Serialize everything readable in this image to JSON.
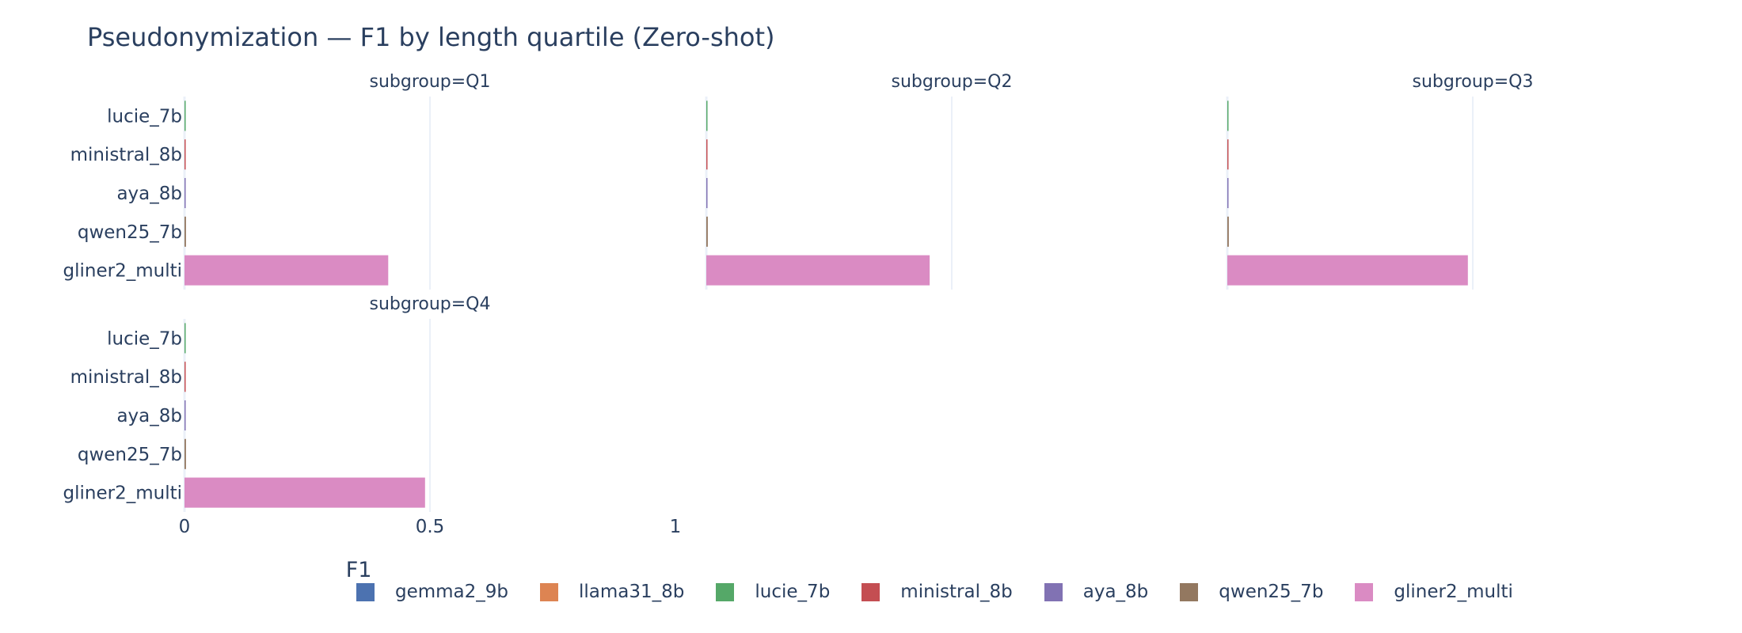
{
  "chart_data": {
    "type": "bar",
    "orientation": "horizontal",
    "title": "Pseudonymization — F1 by length quartile (Zero-shot)",
    "xlabel": "F1",
    "ylabel": "",
    "xlim": [
      0,
      1.0
    ],
    "x_ticks": [
      "0",
      "0.5",
      "1"
    ],
    "grid": true,
    "legend_placement": "bottom",
    "categories": [
      "lucie_7b",
      "ministral_8b",
      "aya_8b",
      "qwen25_7b",
      "gliner2_multi"
    ],
    "series": [
      {
        "name": "gemma2_9b",
        "color": "#4c72b0"
      },
      {
        "name": "llama31_8b",
        "color": "#dd8452"
      },
      {
        "name": "lucie_7b",
        "color": "#55a868"
      },
      {
        "name": "ministral_8b",
        "color": "#c44e52"
      },
      {
        "name": "aya_8b",
        "color": "#8172b3"
      },
      {
        "name": "qwen25_7b",
        "color": "#937860"
      },
      {
        "name": "gliner2_multi",
        "color": "#da8bc3"
      }
    ],
    "facets": [
      {
        "label": "subgroup=Q1",
        "values": {
          "lucie_7b": 0.002,
          "ministral_8b": 0.002,
          "aya_8b": 0.002,
          "qwen25_7b": 0.003,
          "gliner2_multi": 0.415
        }
      },
      {
        "label": "subgroup=Q2",
        "values": {
          "lucie_7b": 0.002,
          "ministral_8b": 0.002,
          "aya_8b": 0.002,
          "qwen25_7b": 0.003,
          "gliner2_multi": 0.455
        }
      },
      {
        "label": "subgroup=Q3",
        "values": {
          "lucie_7b": 0.002,
          "ministral_8b": 0.002,
          "aya_8b": 0.002,
          "qwen25_7b": 0.003,
          "gliner2_multi": 0.49
        }
      },
      {
        "label": "subgroup=Q4",
        "values": {
          "lucie_7b": 0.002,
          "ministral_8b": 0.002,
          "aya_8b": 0.002,
          "qwen25_7b": 0.003,
          "gliner2_multi": 0.49
        }
      }
    ]
  }
}
